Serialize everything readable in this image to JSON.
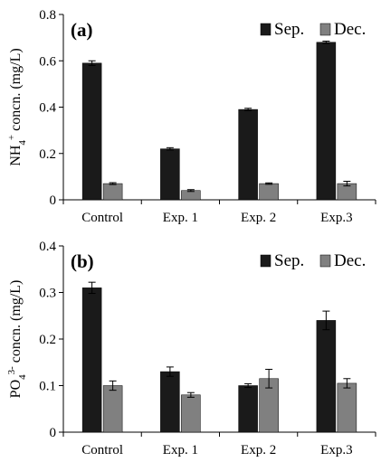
{
  "chart_data": [
    {
      "type": "bar",
      "panel_label": "(a)",
      "categories": [
        "Control",
        "Exp. 1",
        "Exp. 2",
        "Exp.3"
      ],
      "series": [
        {
          "name": "Sep.",
          "color": "#1a1a1a",
          "values": [
            0.59,
            0.22,
            0.39,
            0.68
          ],
          "errors": [
            0.01,
            0.005,
            0.005,
            0.005
          ]
        },
        {
          "name": "Dec.",
          "color": "#808080",
          "values": [
            0.07,
            0.04,
            0.07,
            0.07
          ],
          "errors": [
            0.004,
            0.004,
            0.003,
            0.01
          ]
        }
      ],
      "ylabel": {
        "main": "NH",
        "sub": "4",
        "sup": "+",
        "rest": " concn. (mg/L)"
      },
      "ylim": [
        0,
        0.8
      ],
      "yticks": [
        "0",
        "0.2",
        "0.4",
        "0.6",
        "0.8"
      ],
      "ytick_values": [
        0,
        0.2,
        0.4,
        0.6,
        0.8
      ],
      "legend_position": "top-right",
      "grid": false
    },
    {
      "type": "bar",
      "panel_label": "(b)",
      "categories": [
        "Control",
        "Exp. 1",
        "Exp. 2",
        "Exp.3"
      ],
      "series": [
        {
          "name": "Sep.",
          "color": "#1a1a1a",
          "values": [
            0.31,
            0.13,
            0.1,
            0.24
          ],
          "errors": [
            0.012,
            0.01,
            0.004,
            0.02
          ]
        },
        {
          "name": "Dec.",
          "color": "#808080",
          "values": [
            0.1,
            0.08,
            0.115,
            0.105
          ],
          "errors": [
            0.01,
            0.005,
            0.02,
            0.01
          ]
        }
      ],
      "ylabel": {
        "main": "PO",
        "sub": "4",
        "sup": "3-",
        "rest": " concn. (mg/L)"
      },
      "ylim": [
        0,
        0.4
      ],
      "yticks": [
        "0",
        "0.1",
        "0.2",
        "0.3",
        "0.4"
      ],
      "ytick_values": [
        0,
        0.1,
        0.2,
        0.3,
        0.4
      ],
      "legend_position": "top-right",
      "grid": false
    }
  ]
}
